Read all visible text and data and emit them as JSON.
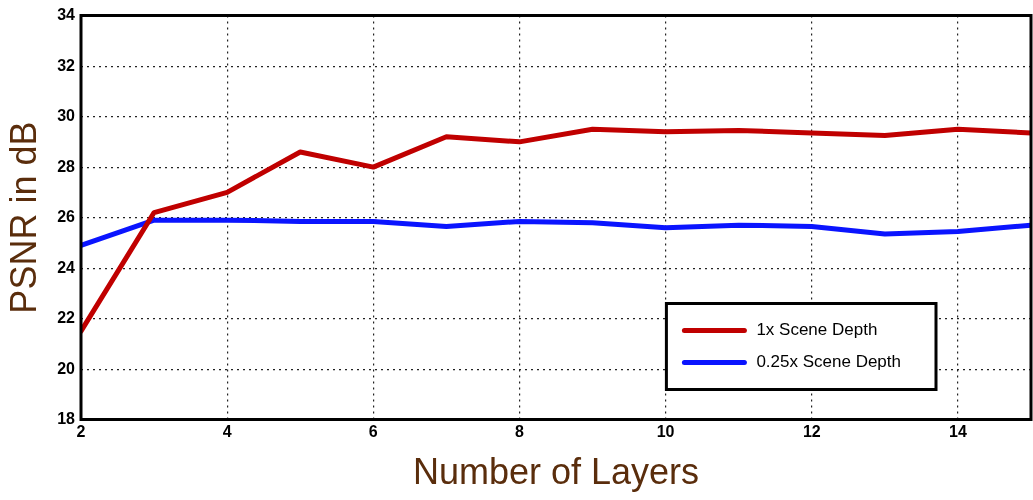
{
  "chart_data": {
    "type": "line",
    "xlabel": "Number of Layers",
    "ylabel": "PSNR in dB",
    "x": [
      2,
      3,
      4,
      5,
      6,
      7,
      8,
      9,
      10,
      11,
      12,
      13,
      14,
      15
    ],
    "series": [
      {
        "name": "1x Scene Depth",
        "color": "#c00000",
        "values": [
          21.5,
          26.2,
          27.0,
          28.6,
          28.0,
          29.2,
          29.0,
          29.5,
          29.4,
          29.45,
          29.35,
          29.25,
          29.5,
          29.35
        ]
      },
      {
        "name": "0.25x Scene Depth",
        "color": "#0a14ff",
        "values": [
          24.9,
          25.9,
          25.9,
          25.85,
          25.85,
          25.65,
          25.85,
          25.8,
          25.6,
          25.7,
          25.65,
          25.35,
          25.45,
          25.7
        ]
      }
    ],
    "xlim": [
      2,
      15
    ],
    "xticks": [
      2,
      4,
      6,
      8,
      10,
      12,
      14
    ],
    "ylim": [
      18,
      34
    ],
    "yticks": [
      18,
      20,
      22,
      24,
      26,
      28,
      30,
      32,
      34
    ],
    "grid": true,
    "legend": "bottom right",
    "marker": "none",
    "line_style": "solid"
  }
}
